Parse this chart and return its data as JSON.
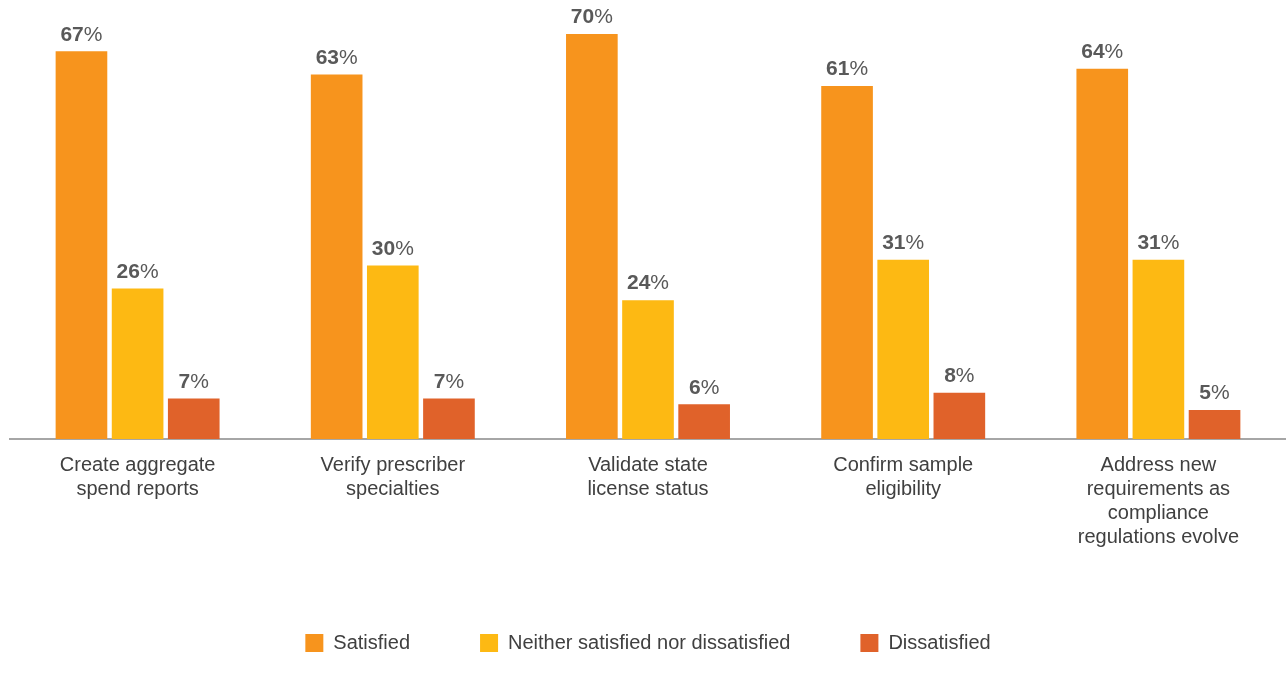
{
  "chart_data": {
    "type": "bar",
    "categories": [
      "Create aggregate spend reports",
      "Verify prescriber specialties",
      "Validate state license status",
      "Confirm sample eligibility",
      "Address new requirements as compliance regulations evolve"
    ],
    "series": [
      {
        "name": "Satisfied",
        "color": "#f7941d",
        "values": [
          67,
          63,
          70,
          61,
          64
        ],
        "value_labels": [
          "67%",
          "63%",
          "70%",
          "61%",
          "64%"
        ]
      },
      {
        "name": "Neither satisfied nor dissatisfied",
        "color": "#fdb913",
        "values": [
          26,
          30,
          24,
          31,
          31
        ],
        "value_labels": [
          "26%",
          "30%",
          "24%",
          "31%",
          "31%"
        ]
      },
      {
        "name": "Dissatisfied",
        "color": "#e0622a",
        "values": [
          7,
          7,
          6,
          8,
          5
        ],
        "value_labels": [
          "7%",
          "7%",
          "6%",
          "8%",
          "5%"
        ]
      }
    ],
    "legend": "bottom",
    "grid": false
  }
}
